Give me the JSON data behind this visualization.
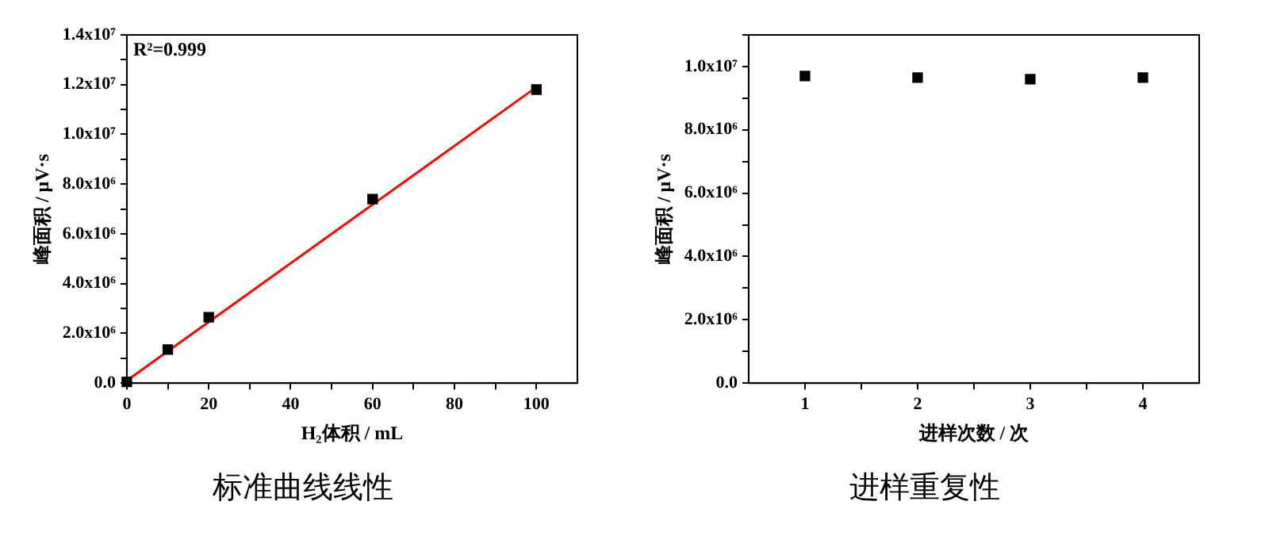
{
  "chart_data": [
    {
      "type": "scatter",
      "title": "标准曲线线性",
      "xlabel": "H₂体积 / mL",
      "ylabel": "峰面积 / μV·s",
      "marker": "square",
      "series": [
        {
          "color": "#000000",
          "x": [
            0,
            10,
            20,
            60,
            100
          ],
          "values": [
            50000,
            1350000,
            2650000,
            7400000,
            11800000
          ]
        },
        {
          "type": "line",
          "color": "#ff0000",
          "marker": "none",
          "line_style": "solid",
          "x": [
            0,
            100
          ],
          "values": [
            100000,
            11900000
          ]
        }
      ],
      "xlim": [
        0,
        110
      ],
      "xticks": [
        0,
        {
          "value": 10,
          "label": null
        },
        20,
        {
          "value": 30,
          "label": null
        },
        40,
        {
          "value": 50,
          "label": null
        },
        60,
        {
          "value": 70,
          "label": null
        },
        80,
        {
          "value": 90,
          "label": null
        },
        100
      ],
      "ylim": [
        0,
        14000000
      ],
      "yticks": [
        {
          "value": 0,
          "label": "0.0"
        },
        {
          "value": 1000000,
          "label": null
        },
        {
          "value": 2000000,
          "label": "2.0x10⁶"
        },
        {
          "value": 3000000,
          "label": null
        },
        {
          "value": 4000000,
          "label": "4.0x10⁶"
        },
        {
          "value": 5000000,
          "label": null
        },
        {
          "value": 6000000,
          "label": "6.0x10⁶"
        },
        {
          "value": 7000000,
          "label": null
        },
        {
          "value": 8000000,
          "label": "8.0x10⁶"
        },
        {
          "value": 9000000,
          "label": null
        },
        {
          "value": 10000000,
          "label": "1.0x10⁷"
        },
        {
          "value": 11000000,
          "label": null
        },
        {
          "value": 12000000,
          "label": "1.2x10⁷"
        },
        {
          "value": 13000000,
          "label": null
        },
        {
          "value": 14000000,
          "label": "1.4x10⁷"
        }
      ],
      "annotations": [
        "R²=0.999"
      ]
    },
    {
      "type": "scatter",
      "title": "进样重复性",
      "xlabel": "进样次数 / 次",
      "ylabel": "峰面积 / μV·s",
      "marker": "square",
      "series": [
        {
          "color": "#000000",
          "x": [
            1,
            2,
            3,
            4
          ],
          "values": [
            9700000,
            9650000,
            9600000,
            9650000
          ]
        }
      ],
      "xlim": [
        0.5,
        4.5
      ],
      "xticks": [
        1,
        {
          "value": 1.5,
          "label": null
        },
        2,
        {
          "value": 2.5,
          "label": null
        },
        3,
        {
          "value": 3.5,
          "label": null
        },
        4
      ],
      "ylim": [
        0,
        11000000
      ],
      "yticks": [
        {
          "value": 0,
          "label": "0.0"
        },
        {
          "value": 1000000,
          "label": null
        },
        {
          "value": 2000000,
          "label": "2.0x10⁶"
        },
        {
          "value": 3000000,
          "label": null
        },
        {
          "value": 4000000,
          "label": "4.0x10⁶"
        },
        {
          "value": 5000000,
          "label": null
        },
        {
          "value": 6000000,
          "label": "6.0x10⁶"
        },
        {
          "value": 7000000,
          "label": null
        },
        {
          "value": 8000000,
          "label": "8.0x10⁶"
        },
        {
          "value": 9000000,
          "label": null
        },
        {
          "value": 10000000,
          "label": "1.0x10⁷"
        },
        {
          "value": 11000000,
          "label": null
        }
      ]
    }
  ]
}
